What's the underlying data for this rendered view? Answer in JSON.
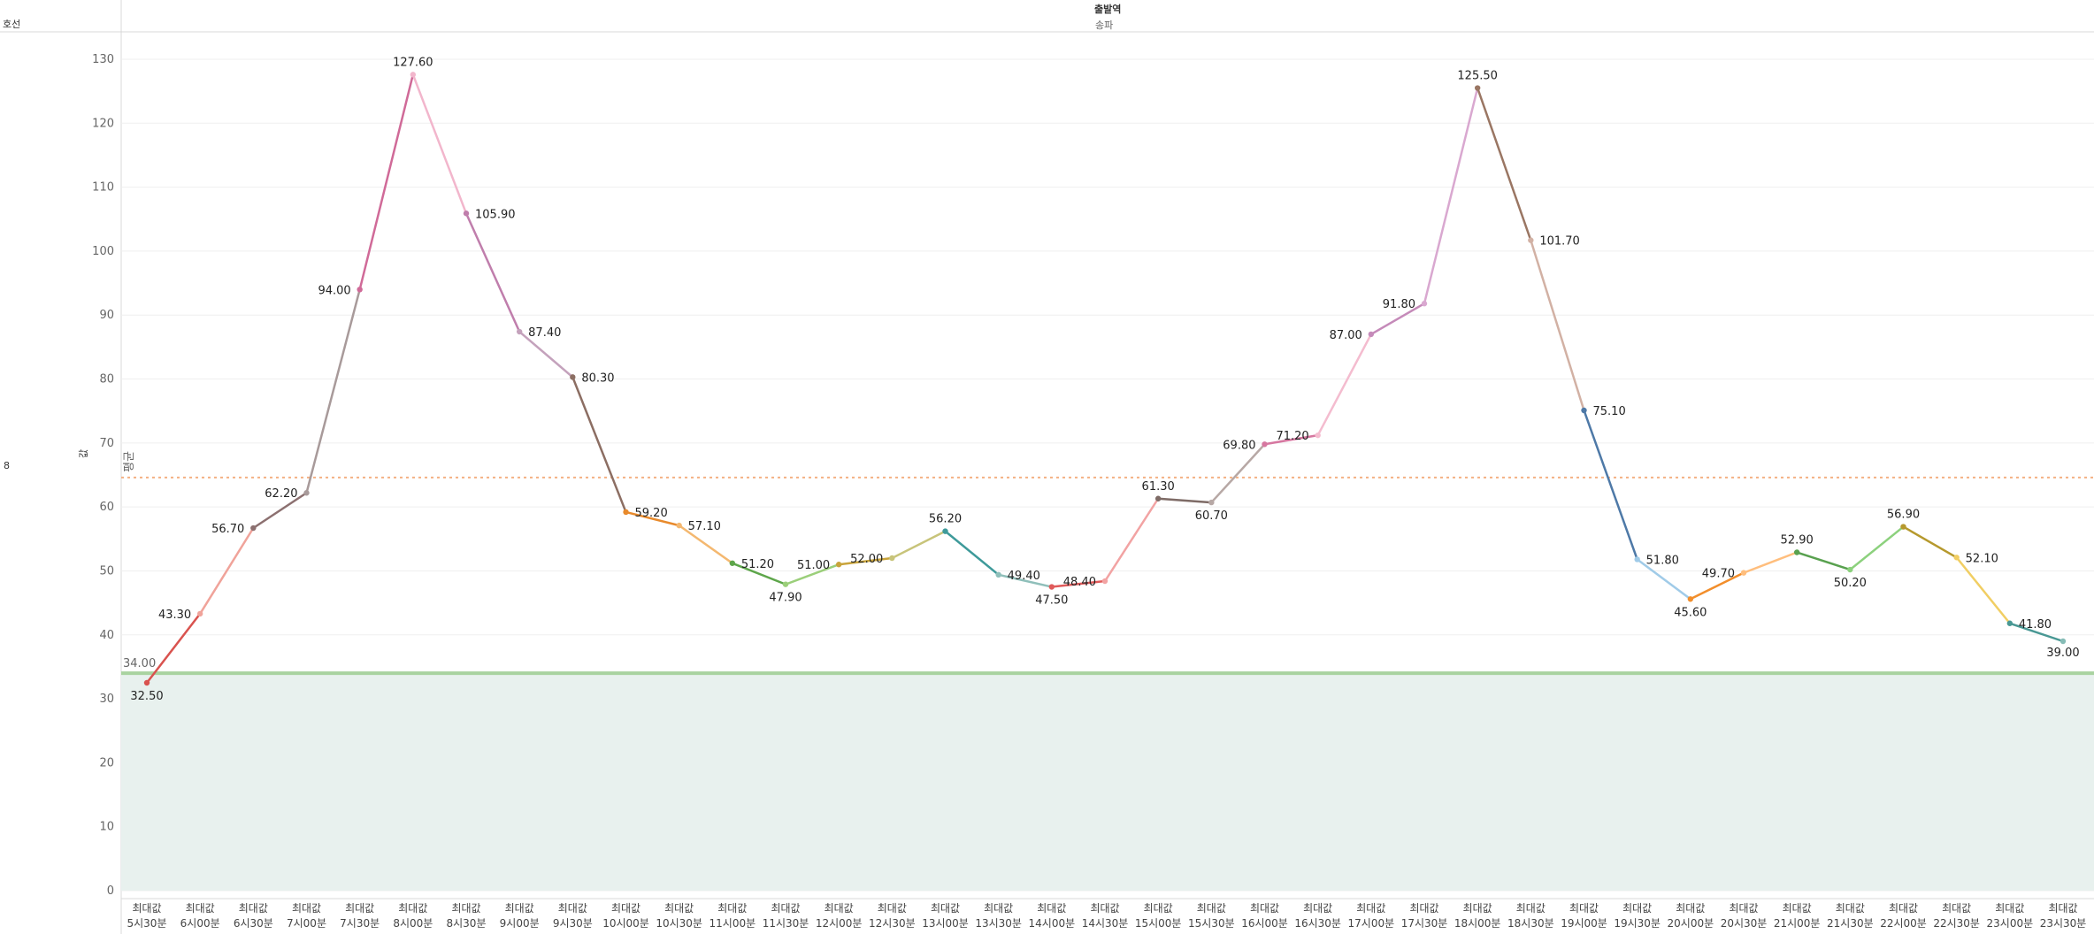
{
  "header": {
    "row_header": "호선",
    "col_header_top": "출발역",
    "col_header_sub": "송파",
    "row_value": "8",
    "axis_title": "값"
  },
  "reference": {
    "line_label": "평균",
    "band_label": "34.00",
    "line_color": "#f4b183",
    "band_color": "#e8f1ee",
    "band_edge_color": "#a9d3a0"
  },
  "chart_data": {
    "type": "line",
    "title": "",
    "xlabel": "",
    "ylabel": "값",
    "ylim": [
      0,
      130
    ],
    "yticks": [
      0,
      10,
      20,
      30,
      40,
      50,
      60,
      70,
      80,
      90,
      100,
      110,
      120,
      130
    ],
    "grid": true,
    "reference_line": {
      "label": "평균",
      "value": 64.6
    },
    "reference_band": {
      "label": "34.00",
      "from": 0,
      "to": 34.0
    },
    "x_line1": "최대값",
    "categories": [
      "5시30분",
      "6시00분",
      "6시30분",
      "7시00분",
      "7시30분",
      "8시00분",
      "8시30분",
      "9시00분",
      "9시30분",
      "10시00분",
      "10시30분",
      "11시00분",
      "11시30분",
      "12시00분",
      "12시30분",
      "13시00분",
      "13시30분",
      "14시00분",
      "14시30분",
      "15시00분",
      "15시30분",
      "16시00분",
      "16시30분",
      "17시00분",
      "17시30분",
      "18시00분",
      "18시30분",
      "19시00분",
      "19시30분",
      "20시00분",
      "20시30분",
      "21시00분",
      "21시30분",
      "22시00분",
      "22시30분",
      "23시00분",
      "23시30분"
    ],
    "values": [
      32.5,
      43.3,
      56.7,
      62.2,
      94.0,
      127.6,
      105.9,
      87.4,
      80.3,
      59.2,
      57.1,
      51.2,
      47.9,
      51.0,
      52.0,
      56.2,
      49.4,
      47.5,
      48.4,
      61.3,
      60.7,
      69.8,
      71.2,
      87.0,
      91.8,
      125.5,
      101.7,
      75.1,
      51.8,
      45.6,
      49.7,
      52.9,
      50.2,
      56.9,
      52.1,
      41.8,
      39.0
    ],
    "value_labels": [
      "32.50",
      "43.30",
      "56.70",
      "62.20",
      "94.00",
      "127.60",
      "105.90",
      "87.40",
      "80.30",
      "59.20",
      "57.10",
      "51.20",
      "47.90",
      "51.00",
      "52.00",
      "56.20",
      "49.40",
      "47.50",
      "48.40",
      "61.30",
      "60.70",
      "69.80",
      "71.20",
      "87.00",
      "91.80",
      "125.50",
      "101.70",
      "75.10",
      "51.80",
      "45.60",
      "49.70",
      "52.90",
      "50.20",
      "56.90",
      "52.10",
      "41.80",
      "39.00"
    ],
    "point_colors": [
      "#d9534f",
      "#f0a39a",
      "#8c7070",
      "#a89a9a",
      "#d06a98",
      "#f2b6cc",
      "#c07eac",
      "#c4a2bc",
      "#8c6e63",
      "#e88a2c",
      "#f4b870",
      "#5ea64b",
      "#9bcf7a",
      "#c9a43b",
      "#c8c47a",
      "#3e9a9a",
      "#8fbfba",
      "#e05a5a",
      "#f2a3a3",
      "#7e6b66",
      "#b7a8a5",
      "#d677a0",
      "#f4bccf",
      "#c58ab9",
      "#d9a8d0",
      "#9a7663",
      "#d2b1a4",
      "#4e79a7",
      "#a0cbe8",
      "#f28e2b",
      "#ffbe7d",
      "#59a14f",
      "#8cd17d",
      "#b6992d",
      "#f1ce63",
      "#499894",
      "#86bcb6"
    ]
  }
}
